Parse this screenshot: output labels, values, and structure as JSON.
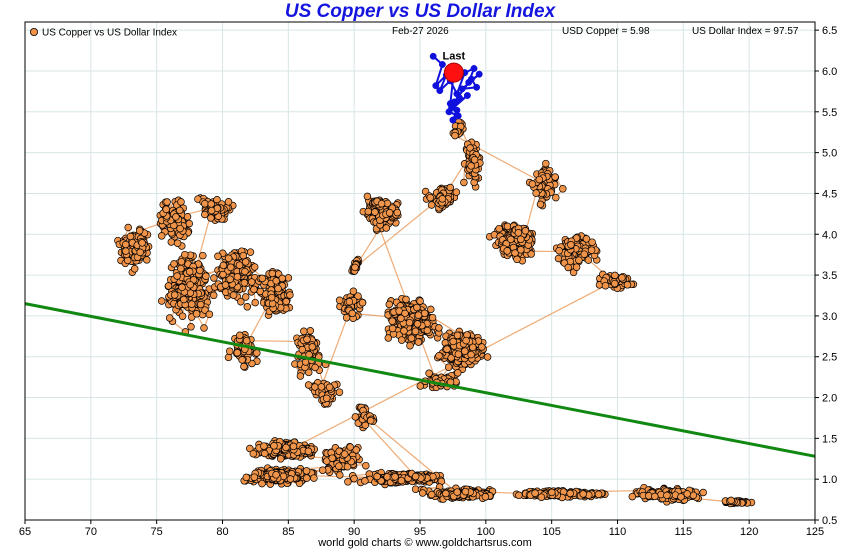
{
  "chart_data": {
    "type": "scatter",
    "title": "US Copper vs US Dollar Index",
    "legend": {
      "label": "US Copper vs US Dollar Index",
      "position": "top-left"
    },
    "header": {
      "date": "Feb-27  2026",
      "copper": "USD Copper = 5.98",
      "dollar": "US Dollar Index = 97.57"
    },
    "footer": "world gold charts © www.goldchartsrus.com",
    "x_axis": {
      "min": 65,
      "max": 125,
      "ticks": [
        65,
        70,
        75,
        80,
        85,
        90,
        95,
        100,
        105,
        110,
        115,
        120,
        125
      ]
    },
    "y_axis": {
      "min": 0.5,
      "max": 6.6,
      "position": "right",
      "ticks": [
        0.5,
        1.0,
        1.5,
        2.0,
        2.5,
        3.0,
        3.5,
        4.0,
        4.5,
        5.0,
        5.5,
        6.0,
        6.5
      ],
      "tick_labels": [
        "0.5",
        "1.0",
        "1.5",
        "2.0",
        "2.5",
        "3.0",
        "3.5",
        "4.0",
        "4.5",
        "5.0",
        "5.5",
        "6.0",
        "6.5"
      ]
    },
    "grid": true,
    "colors": {
      "history": "#f0944a",
      "history_line": "#e8873a",
      "recent": "#1010dd",
      "last": "#ff1010",
      "trend": "#118811",
      "title": "#1515e0"
    },
    "trend_line": {
      "x": [
        65,
        125
      ],
      "y": [
        3.15,
        1.28
      ]
    },
    "last_point": {
      "label": "Last",
      "x": 97.57,
      "y": 5.98
    },
    "recent_series": {
      "x": [
        96.0,
        96.7,
        96.2,
        97.0,
        96.5,
        97.3,
        97.8,
        98.4,
        99.1,
        98.7,
        99.5,
        98.2,
        99.3,
        98.9,
        97.6,
        98.0,
        97.4,
        98.6,
        97.2,
        97.9,
        97.5,
        97.8,
        97.3,
        97.57
      ],
      "y": [
        6.18,
        6.08,
        5.82,
        5.95,
        5.76,
        5.88,
        5.72,
        5.98,
        6.03,
        5.86,
        5.96,
        5.78,
        5.8,
        5.9,
        5.62,
        5.67,
        5.55,
        5.7,
        5.5,
        5.45,
        5.4,
        5.52,
        5.6,
        5.98
      ]
    },
    "history_clusters": [
      {
        "cx": 73.5,
        "cy": 3.85,
        "sx": 1.4,
        "sy": 0.35,
        "n": 120
      },
      {
        "cx": 76.5,
        "cy": 4.2,
        "sx": 1.6,
        "sy": 0.25,
        "n": 110
      },
      {
        "cx": 79.5,
        "cy": 4.3,
        "sx": 1.4,
        "sy": 0.2,
        "n": 70
      },
      {
        "cx": 77.5,
        "cy": 3.4,
        "sx": 2.0,
        "sy": 0.4,
        "n": 260
      },
      {
        "cx": 81.0,
        "cy": 3.5,
        "sx": 1.8,
        "sy": 0.35,
        "n": 220
      },
      {
        "cx": 84.0,
        "cy": 3.3,
        "sx": 1.5,
        "sy": 0.3,
        "n": 150
      },
      {
        "cx": 81.5,
        "cy": 2.6,
        "sx": 1.2,
        "sy": 0.25,
        "n": 50
      },
      {
        "cx": 86.5,
        "cy": 2.6,
        "sx": 1.4,
        "sy": 0.35,
        "n": 70
      },
      {
        "cx": 88.0,
        "cy": 2.1,
        "sx": 1.2,
        "sy": 0.25,
        "n": 45
      },
      {
        "cx": 90.0,
        "cy": 3.1,
        "sx": 1.2,
        "sy": 0.2,
        "n": 55
      },
      {
        "cx": 94.5,
        "cy": 2.9,
        "sx": 2.2,
        "sy": 0.3,
        "n": 260
      },
      {
        "cx": 98.5,
        "cy": 2.6,
        "sx": 2.0,
        "sy": 0.25,
        "n": 200
      },
      {
        "cx": 97.0,
        "cy": 2.2,
        "sx": 1.8,
        "sy": 0.12,
        "n": 60
      },
      {
        "cx": 92.0,
        "cy": 4.3,
        "sx": 1.4,
        "sy": 0.25,
        "n": 110
      },
      {
        "cx": 90.2,
        "cy": 3.7,
        "sx": 0.4,
        "sy": 0.12,
        "n": 18
      },
      {
        "cx": 97.0,
        "cy": 4.45,
        "sx": 1.3,
        "sy": 0.18,
        "n": 70
      },
      {
        "cx": 98.8,
        "cy": 4.85,
        "sx": 0.9,
        "sy": 0.3,
        "n": 65
      },
      {
        "cx": 97.9,
        "cy": 5.3,
        "sx": 0.5,
        "sy": 0.15,
        "n": 20
      },
      {
        "cx": 104.5,
        "cy": 4.6,
        "sx": 1.2,
        "sy": 0.3,
        "n": 80
      },
      {
        "cx": 102.5,
        "cy": 3.9,
        "sx": 1.8,
        "sy": 0.3,
        "n": 200
      },
      {
        "cx": 107.0,
        "cy": 3.8,
        "sx": 1.8,
        "sy": 0.25,
        "n": 90
      },
      {
        "cx": 109.5,
        "cy": 3.45,
        "sx": 2.0,
        "sy": 0.15,
        "n": 45
      },
      {
        "cx": 85.0,
        "cy": 1.35,
        "sx": 2.6,
        "sy": 0.12,
        "n": 260
      },
      {
        "cx": 89.0,
        "cy": 1.25,
        "sx": 1.8,
        "sy": 0.2,
        "n": 110
      },
      {
        "cx": 84.5,
        "cy": 1.05,
        "sx": 3.2,
        "sy": 0.1,
        "n": 230
      },
      {
        "cx": 94.0,
        "cy": 1.02,
        "sx": 3.0,
        "sy": 0.08,
        "n": 200
      },
      {
        "cx": 91.0,
        "cy": 1.75,
        "sx": 1.0,
        "sy": 0.15,
        "n": 35
      },
      {
        "cx": 98.0,
        "cy": 0.82,
        "sx": 3.0,
        "sy": 0.07,
        "n": 190
      },
      {
        "cx": 106.0,
        "cy": 0.82,
        "sx": 3.8,
        "sy": 0.05,
        "n": 180
      },
      {
        "cx": 114.0,
        "cy": 0.82,
        "sx": 3.0,
        "sy": 0.08,
        "n": 170
      },
      {
        "cx": 119.0,
        "cy": 0.72,
        "sx": 1.2,
        "sy": 0.03,
        "n": 35
      }
    ]
  }
}
